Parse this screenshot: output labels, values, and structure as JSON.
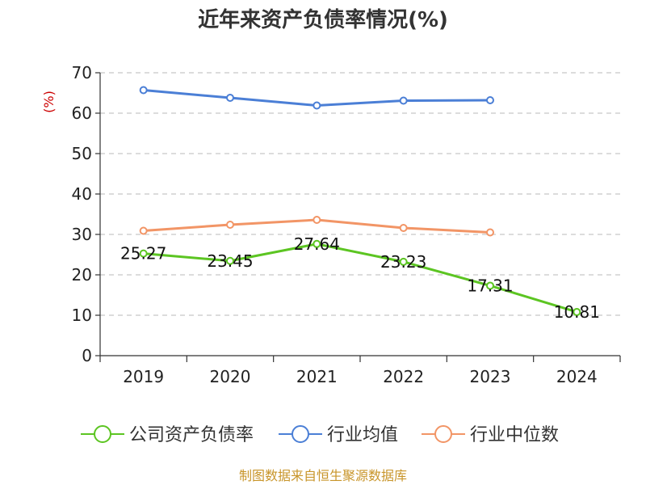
{
  "chart_data": {
    "type": "line",
    "title": "近年来资产负债率情况(%)",
    "ylabel": "(%)",
    "categories": [
      "2019",
      "2020",
      "2021",
      "2022",
      "2023",
      "2024"
    ],
    "ylim": [
      0,
      70
    ],
    "yticks": [
      0,
      10,
      20,
      30,
      40,
      50,
      60,
      70
    ],
    "grid": true,
    "legend_position": "bottom",
    "series": [
      {
        "name": "公司资产负债率",
        "color": "#5cc522",
        "values": [
          25.27,
          23.45,
          27.64,
          23.23,
          17.31,
          10.81
        ],
        "labels": [
          "25.27",
          "23.45",
          "27.64",
          "23.23",
          "17.31",
          "10.81"
        ]
      },
      {
        "name": "行业均值",
        "color": "#4b7fd6",
        "values": [
          65.7,
          63.8,
          61.9,
          63.1,
          63.2,
          null
        ]
      },
      {
        "name": "行业中位数",
        "color": "#f29566",
        "values": [
          30.9,
          32.4,
          33.6,
          31.6,
          30.5,
          null
        ]
      }
    ]
  },
  "source": "制图数据来自恒生聚源数据库"
}
